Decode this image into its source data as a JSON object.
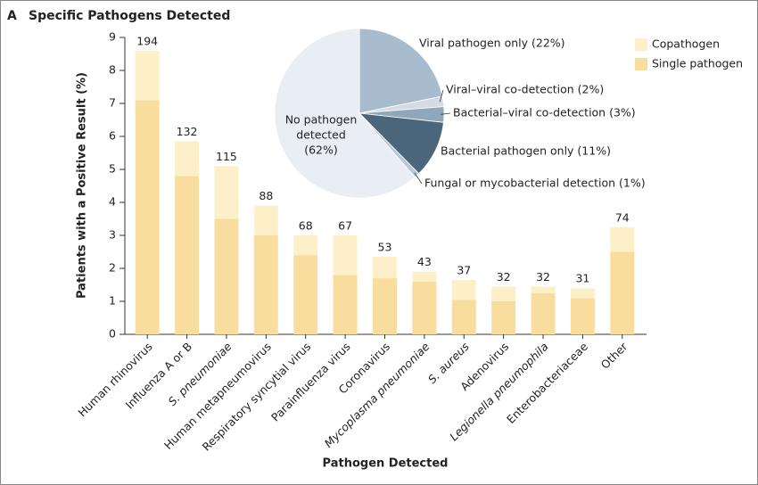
{
  "chart_data": {
    "type": "bar",
    "stacked": true,
    "panel_label": "A",
    "title": "Specific Pathogens Detected",
    "ylabel": "Patients with a Positive Result (%)",
    "xlabel": "Pathogen Detected",
    "categories": [
      "Human rhinovirus",
      "Influenza A or B",
      "S. pneumoniae",
      "Human metapneumovirus",
      "Respiratory syncytial virus",
      "Parainfluenza virus",
      "Coronavirus",
      "Mycoplasma pneumoniae",
      "S. aureus",
      "Adenovirus",
      "Legionella pneumophila",
      "Enterobacteriaceae",
      "Other"
    ],
    "italic": [
      false,
      false,
      true,
      false,
      false,
      false,
      false,
      true,
      true,
      false,
      true,
      false,
      false
    ],
    "counts": [
      194,
      132,
      115,
      88,
      68,
      67,
      53,
      43,
      37,
      32,
      32,
      31,
      74
    ],
    "series": [
      {
        "name": "Single pathogen",
        "color": "#f9dd9f",
        "values": [
          7.1,
          4.8,
          3.5,
          3.0,
          2.4,
          1.8,
          1.7,
          1.6,
          1.05,
          1.0,
          1.25,
          1.1,
          2.5
        ]
      },
      {
        "name": "Copathogen",
        "color": "#fdf0c9",
        "values": [
          1.5,
          1.05,
          1.6,
          0.9,
          0.6,
          1.2,
          0.65,
          0.3,
          0.6,
          0.45,
          0.2,
          0.3,
          0.75
        ]
      }
    ],
    "ylim": [
      0,
      9
    ],
    "yticks": [
      0,
      1,
      2,
      3,
      4,
      5,
      6,
      7,
      8,
      9
    ],
    "legend": "upper right",
    "inset": {
      "type": "pie",
      "labels": [
        "Viral pathogen only (22%)",
        "Viral–viral co-detection (2%)",
        "Bacterial–viral co-detection (3%)",
        "Bacterial pathogen only (11%)",
        "Fungal or mycobacterial detection (1%)",
        [
          "No pathogen",
          "detected",
          "(62%)"
        ]
      ],
      "values": [
        22,
        2,
        3,
        11,
        1,
        62
      ],
      "colors": [
        "#a9bccd",
        "#d3dce5",
        "#8fa7bb",
        "#4b667b",
        "#b7c7d4",
        "#e9eef4"
      ]
    }
  }
}
